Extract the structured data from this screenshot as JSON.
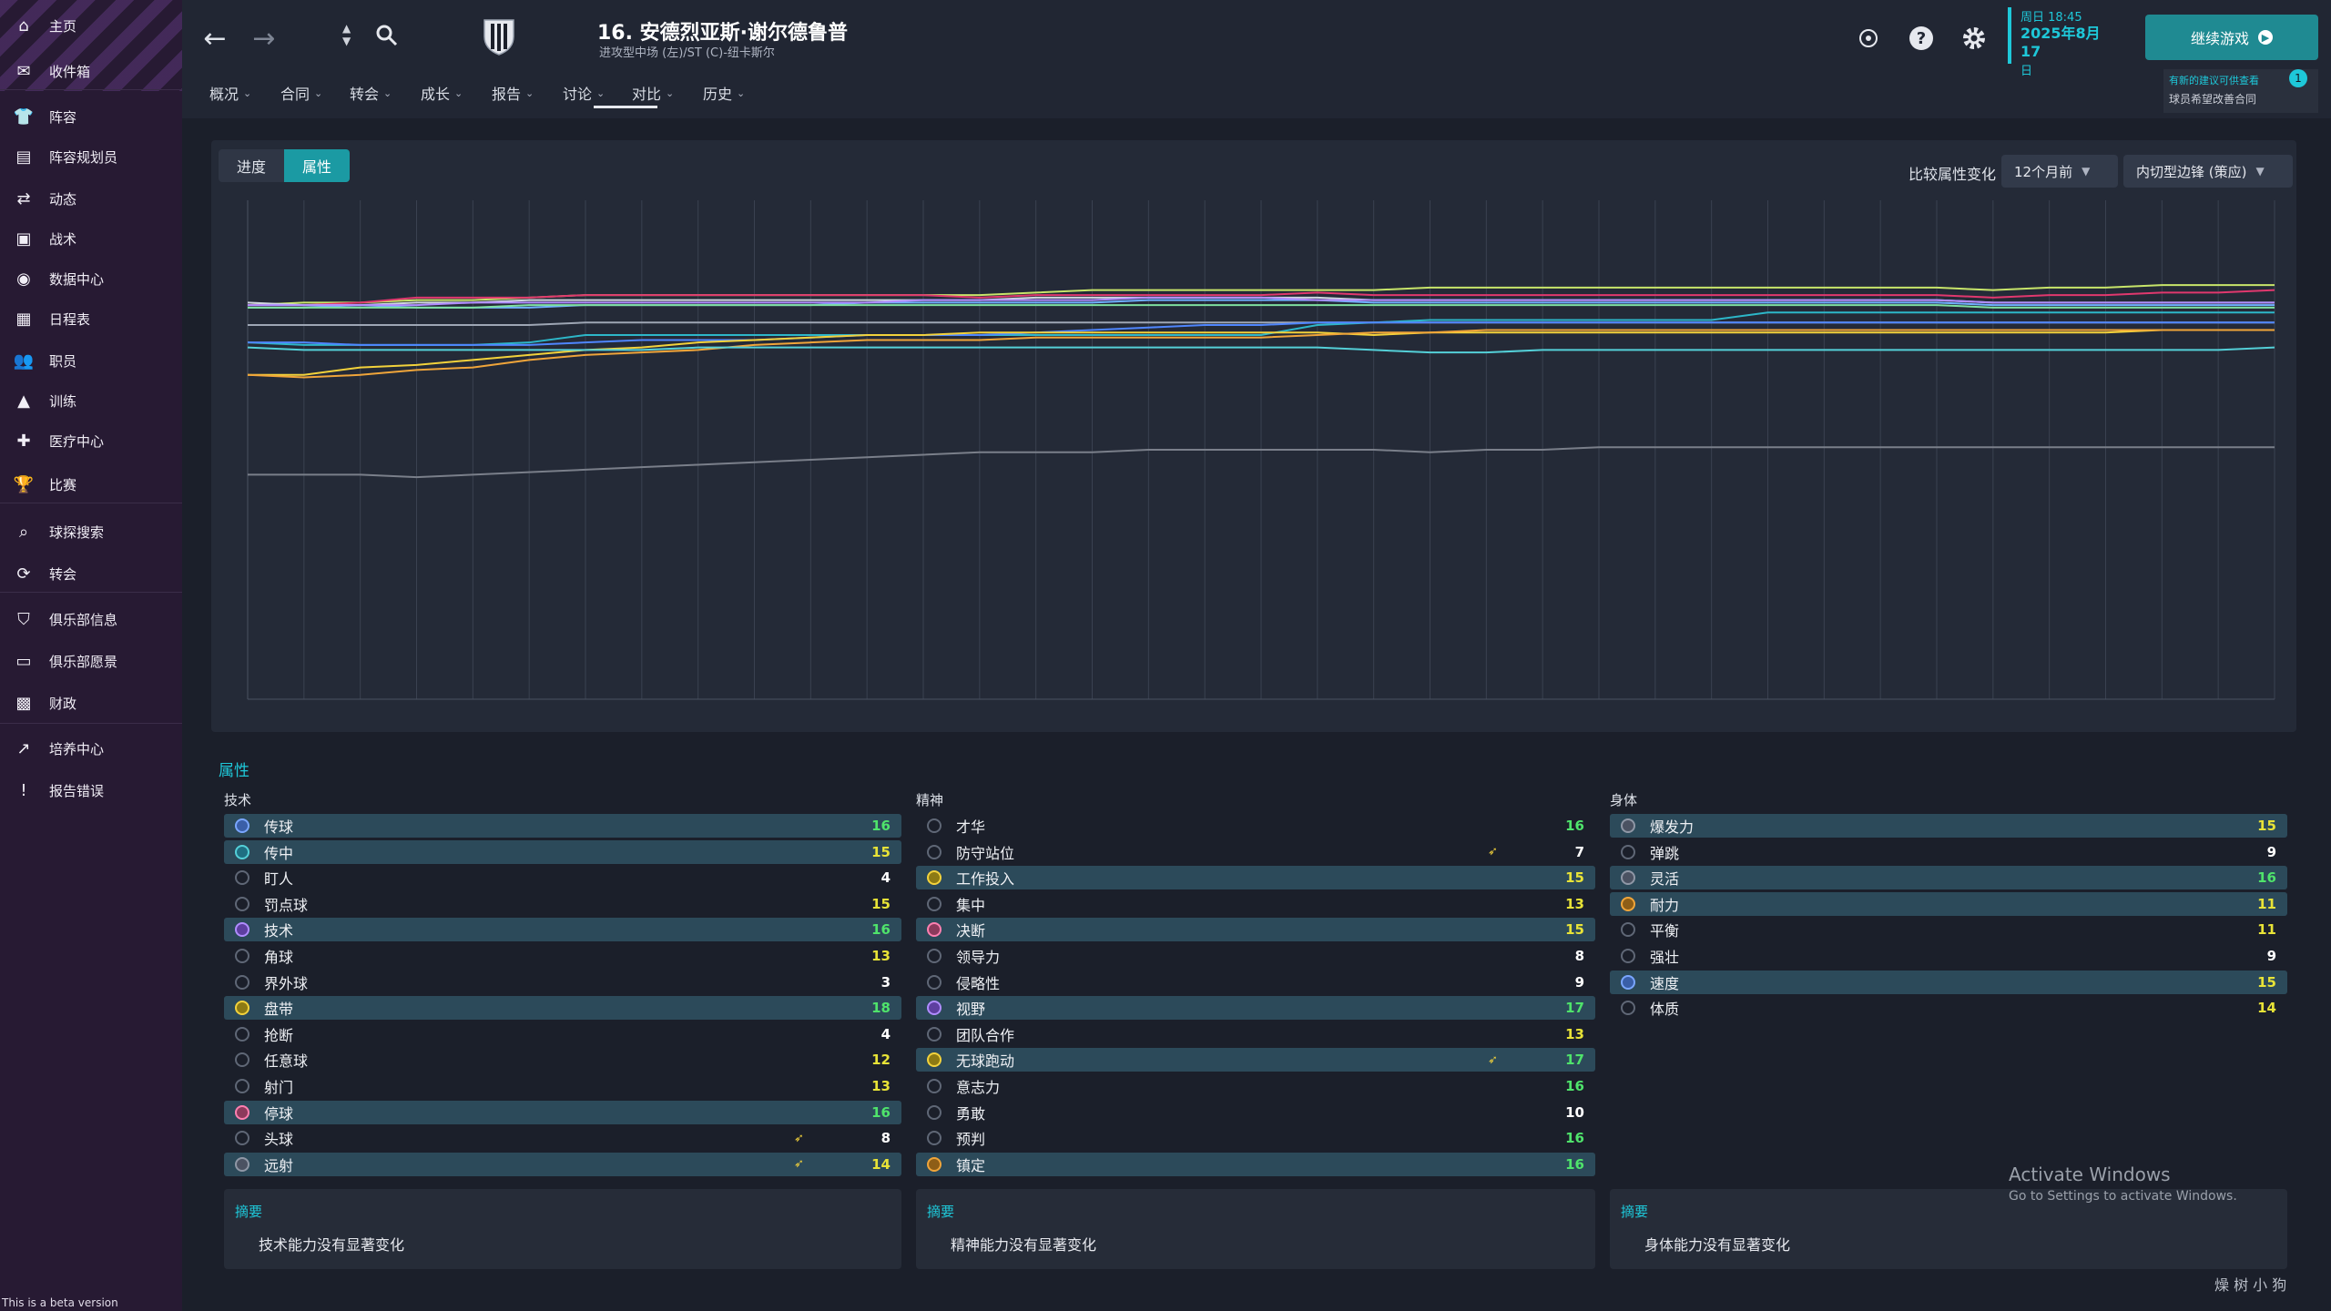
{
  "sidebar": {
    "items": [
      {
        "label": "主页",
        "icon": "home-icon"
      },
      {
        "label": "收件箱",
        "icon": "inbox-icon"
      },
      {
        "label": "阵容",
        "icon": "shirt-icon"
      },
      {
        "label": "阵容规划员",
        "icon": "clipboard-icon"
      },
      {
        "label": "动态",
        "icon": "dynamics-icon"
      },
      {
        "label": "战术",
        "icon": "tactics-icon"
      },
      {
        "label": "数据中心",
        "icon": "data-icon"
      },
      {
        "label": "日程表",
        "icon": "calendar-icon"
      },
      {
        "label": "职员",
        "icon": "staff-icon"
      },
      {
        "label": "训练",
        "icon": "training-icon"
      },
      {
        "label": "医疗中心",
        "icon": "medical-icon"
      },
      {
        "label": "比赛",
        "icon": "trophy-icon"
      },
      {
        "label": "球探搜索",
        "icon": "search-icon"
      },
      {
        "label": "转会",
        "icon": "transfer-icon"
      },
      {
        "label": "俱乐部信息",
        "icon": "club-icon"
      },
      {
        "label": "俱乐部愿景",
        "icon": "vision-icon"
      },
      {
        "label": "财政",
        "icon": "finance-icon"
      },
      {
        "label": "培养中心",
        "icon": "development-icon"
      },
      {
        "label": "报告错误",
        "icon": "alert-icon"
      }
    ],
    "beta_text": "This is a beta version"
  },
  "header": {
    "player_title": "16. 安德烈亚斯·谢尔德鲁普",
    "player_subtitle": "进攻型中场 (左)/ST (C)-纽卡斯尔",
    "tabs": [
      "概况",
      "合同",
      "转会",
      "成长",
      "报告",
      "讨论",
      "对比",
      "历史"
    ],
    "active_tab": "成长",
    "date_line1": "周日 18:45",
    "date_line2": "2025年8月17",
    "date_line3": "日",
    "continue_label": "继续游戏",
    "notif_line1": "有新的建议可供查看",
    "notif_line2": "球员希望改善合同",
    "notif_count": "1"
  },
  "chart_panel": {
    "toggle_progress": "进度",
    "toggle_attributes": "属性",
    "compare_label": "比较属性变化",
    "period_value": "12个月前",
    "role_value": "内切型边锋 (策应)"
  },
  "chart_data": {
    "type": "line",
    "x_points": 37,
    "ylim": [
      0,
      20
    ],
    "grid": "vertical",
    "legend": "none",
    "series": [
      {
        "color": "#c8e56a",
        "values": [
          15.8,
          15.9,
          15.9,
          16.0,
          16.0,
          16.1,
          16.2,
          16.2,
          16.2,
          16.2,
          16.2,
          16.2,
          16.2,
          16.2,
          16.3,
          16.4,
          16.4,
          16.4,
          16.4,
          16.4,
          16.4,
          16.5,
          16.5,
          16.5,
          16.5,
          16.5,
          16.5,
          16.5,
          16.5,
          16.5,
          16.5,
          16.4,
          16.5,
          16.5,
          16.6,
          16.6,
          16.6
        ]
      },
      {
        "color": "#e0386e",
        "values": [
          15.8,
          15.8,
          15.9,
          16.1,
          16.1,
          16.1,
          16.2,
          16.2,
          16.2,
          16.2,
          16.2,
          16.2,
          16.2,
          16.1,
          16.2,
          16.2,
          16.2,
          16.2,
          16.2,
          16.3,
          16.2,
          16.2,
          16.2,
          16.2,
          16.2,
          16.2,
          16.2,
          16.2,
          16.2,
          16.2,
          16.2,
          16.1,
          16.2,
          16.2,
          16.3,
          16.3,
          16.4
        ]
      },
      {
        "color": "#d0d6e0",
        "values": [
          15.9,
          15.8,
          15.8,
          15.9,
          15.9,
          16.0,
          16.0,
          16.0,
          16.0,
          16.0,
          16.0,
          16.0,
          16.0,
          16.0,
          16.1,
          16.1,
          16.1,
          16.1,
          16.1,
          16.1,
          16.0,
          16.0,
          16.0,
          16.0,
          16.0,
          16.0,
          16.0,
          16.0,
          16.0,
          16.0,
          16.0,
          15.9,
          15.9,
          15.9,
          15.9,
          15.9,
          15.9
        ]
      },
      {
        "color": "#6fb0ff",
        "values": [
          15.7,
          15.7,
          15.8,
          15.7,
          15.7,
          15.7,
          15.8,
          15.8,
          15.8,
          15.8,
          15.8,
          15.9,
          15.9,
          15.9,
          15.9,
          15.9,
          16.0,
          16.0,
          16.0,
          16.0,
          15.9,
          15.9,
          15.9,
          15.9,
          15.9,
          15.9,
          15.9,
          15.9,
          15.9,
          15.9,
          15.9,
          15.8,
          15.8,
          15.8,
          15.8,
          15.8,
          15.8
        ]
      },
      {
        "color": "#b08cff",
        "values": [
          15.8,
          15.8,
          15.8,
          15.8,
          15.9,
          15.9,
          15.9,
          15.9,
          15.9,
          15.9,
          15.9,
          15.9,
          16.0,
          16.0,
          16.0,
          16.0,
          16.1,
          16.1,
          16.1,
          16.0,
          16.0,
          16.0,
          16.0,
          16.0,
          16.0,
          16.0,
          16.0,
          16.0,
          16.0,
          16.0,
          16.0,
          15.9,
          15.9,
          15.9,
          15.9,
          15.9,
          15.9
        ]
      },
      {
        "color": "#7ee0a0",
        "values": [
          15.7,
          15.7,
          15.7,
          15.7,
          15.7,
          15.8,
          15.8,
          15.8,
          15.8,
          15.8,
          15.8,
          15.8,
          15.8,
          15.8,
          15.8,
          15.8,
          15.8,
          15.8,
          15.8,
          15.8,
          15.8,
          15.8,
          15.8,
          15.8,
          15.8,
          15.8,
          15.8,
          15.8,
          15.8,
          15.8,
          15.8,
          15.7,
          15.7,
          15.7,
          15.7,
          15.7,
          15.7
        ]
      },
      {
        "color": "#9ea6b4",
        "values": [
          15.0,
          15.0,
          15.0,
          15.0,
          15.0,
          15.0,
          15.1,
          15.1,
          15.1,
          15.1,
          15.1,
          15.1,
          15.1,
          15.1,
          15.1,
          15.1,
          15.1,
          15.1,
          15.1,
          15.1,
          15.1,
          15.1,
          15.1,
          15.1,
          15.1,
          15.1,
          15.1,
          15.1,
          15.1,
          15.1,
          15.1,
          15.1,
          15.1,
          15.1,
          15.1,
          15.1,
          15.1
        ]
      },
      {
        "color": "#2db7c9",
        "values": [
          14.3,
          14.2,
          14.2,
          14.2,
          14.2,
          14.3,
          14.6,
          14.6,
          14.6,
          14.6,
          14.6,
          14.6,
          14.6,
          14.6,
          14.6,
          14.6,
          14.6,
          14.6,
          14.6,
          15.0,
          15.1,
          15.2,
          15.2,
          15.2,
          15.2,
          15.2,
          15.2,
          15.5,
          15.5,
          15.5,
          15.5,
          15.5,
          15.5,
          15.5,
          15.5,
          15.5,
          15.5
        ]
      },
      {
        "color": "#4f86ff",
        "values": [
          14.3,
          14.3,
          14.2,
          14.2,
          14.2,
          14.2,
          14.3,
          14.4,
          14.4,
          14.4,
          14.5,
          14.6,
          14.6,
          14.6,
          14.7,
          14.8,
          14.9,
          15.0,
          15.0,
          15.1,
          15.1,
          15.1,
          15.1,
          15.1,
          15.1,
          15.1,
          15.1,
          15.1,
          15.1,
          15.1,
          15.1,
          15.1,
          15.1,
          15.1,
          15.1,
          15.1,
          15.1
        ]
      },
      {
        "color": "#f3d23b",
        "values": [
          13.0,
          13.0,
          13.3,
          13.4,
          13.6,
          13.8,
          14.0,
          14.1,
          14.3,
          14.4,
          14.5,
          14.6,
          14.6,
          14.7,
          14.7,
          14.7,
          14.7,
          14.7,
          14.7,
          14.7,
          14.6,
          14.7,
          14.7,
          14.7,
          14.7,
          14.7,
          14.7,
          14.7,
          14.7,
          14.7,
          14.7,
          14.7,
          14.7,
          14.7,
          14.8,
          14.8,
          14.8
        ]
      },
      {
        "color": "#f0a53a",
        "values": [
          13.0,
          12.9,
          13.0,
          13.2,
          13.3,
          13.6,
          13.8,
          13.9,
          14.0,
          14.2,
          14.3,
          14.4,
          14.4,
          14.4,
          14.5,
          14.5,
          14.5,
          14.5,
          14.5,
          14.6,
          14.7,
          14.7,
          14.8,
          14.8,
          14.8,
          14.8,
          14.8,
          14.8,
          14.8,
          14.8,
          14.8,
          14.8,
          14.8,
          14.8,
          14.8,
          14.8,
          14.8
        ]
      },
      {
        "color": "#54d0d8",
        "values": [
          14.1,
          14.0,
          14.0,
          14.0,
          14.0,
          14.0,
          14.0,
          14.0,
          14.1,
          14.1,
          14.1,
          14.1,
          14.1,
          14.1,
          14.1,
          14.1,
          14.1,
          14.1,
          14.1,
          14.1,
          14.0,
          13.9,
          13.9,
          14.0,
          14.0,
          14.0,
          14.0,
          14.0,
          14.0,
          14.0,
          14.0,
          14.0,
          14.0,
          14.0,
          14.0,
          14.0,
          14.1
        ]
      },
      {
        "color": "#7a7f8a",
        "values": [
          9.0,
          9.0,
          9.0,
          8.9,
          9.0,
          9.1,
          9.2,
          9.3,
          9.4,
          9.5,
          9.6,
          9.7,
          9.8,
          9.9,
          9.9,
          9.9,
          10.0,
          10.0,
          10.0,
          10.0,
          10.0,
          9.9,
          10.0,
          10.0,
          10.1,
          10.1,
          10.1,
          10.1,
          10.1,
          10.1,
          10.1,
          10.1,
          10.1,
          10.1,
          10.1,
          10.1,
          10.1
        ]
      }
    ]
  },
  "attributes": {
    "title": "属性",
    "technical": {
      "title": "技术",
      "rows": [
        {
          "name": "传球",
          "value": "16",
          "hl": true,
          "dot": "c-blue",
          "vc": "v-green",
          "arrow": ""
        },
        {
          "name": "传中",
          "value": "15",
          "hl": true,
          "dot": "c-teal",
          "vc": "v-yellow",
          "arrow": ""
        },
        {
          "name": "盯人",
          "value": "4",
          "hl": false,
          "dot": "c-plain",
          "vc": "v-white",
          "arrow": ""
        },
        {
          "name": "罚点球",
          "value": "15",
          "hl": false,
          "dot": "c-plain",
          "vc": "v-yellow",
          "arrow": ""
        },
        {
          "name": "技术",
          "value": "16",
          "hl": true,
          "dot": "c-purple",
          "vc": "v-green",
          "arrow": ""
        },
        {
          "name": "角球",
          "value": "13",
          "hl": false,
          "dot": "c-plain",
          "vc": "v-yellow",
          "arrow": ""
        },
        {
          "name": "界外球",
          "value": "3",
          "hl": false,
          "dot": "c-plain",
          "vc": "v-white",
          "arrow": ""
        },
        {
          "name": "盘带",
          "value": "18",
          "hl": true,
          "dot": "c-yellow",
          "vc": "v-green",
          "arrow": ""
        },
        {
          "name": "抢断",
          "value": "4",
          "hl": false,
          "dot": "c-plain",
          "vc": "v-white",
          "arrow": ""
        },
        {
          "name": "任意球",
          "value": "12",
          "hl": false,
          "dot": "c-plain",
          "vc": "v-yellow",
          "arrow": ""
        },
        {
          "name": "射门",
          "value": "13",
          "hl": false,
          "dot": "c-plain",
          "vc": "v-yellow",
          "arrow": ""
        },
        {
          "name": "停球",
          "value": "16",
          "hl": true,
          "dot": "c-pink",
          "vc": "v-green",
          "arrow": ""
        },
        {
          "name": "头球",
          "value": "8",
          "hl": false,
          "dot": "c-plain",
          "vc": "v-white",
          "arrow": "➶"
        },
        {
          "name": "远射",
          "value": "14",
          "hl": true,
          "dot": "c-gray",
          "vc": "v-yellow",
          "arrow": "➶"
        }
      ]
    },
    "mental": {
      "title": "精神",
      "rows": [
        {
          "name": "才华",
          "value": "16",
          "hl": false,
          "dot": "c-plain",
          "vc": "v-green",
          "arrow": ""
        },
        {
          "name": "防守站位",
          "value": "7",
          "hl": false,
          "dot": "c-plain",
          "vc": "v-white",
          "arrow": "➶"
        },
        {
          "name": "工作投入",
          "value": "15",
          "hl": true,
          "dot": "c-yellow",
          "vc": "v-yellow",
          "arrow": ""
        },
        {
          "name": "集中",
          "value": "13",
          "hl": false,
          "dot": "c-plain",
          "vc": "v-yellow",
          "arrow": ""
        },
        {
          "name": "决断",
          "value": "15",
          "hl": true,
          "dot": "c-pink",
          "vc": "v-yellow",
          "arrow": ""
        },
        {
          "name": "领导力",
          "value": "8",
          "hl": false,
          "dot": "c-plain",
          "vc": "v-white",
          "arrow": ""
        },
        {
          "name": "侵略性",
          "value": "9",
          "hl": false,
          "dot": "c-plain",
          "vc": "v-white",
          "arrow": ""
        },
        {
          "name": "视野",
          "value": "17",
          "hl": true,
          "dot": "c-purple",
          "vc": "v-green",
          "arrow": ""
        },
        {
          "name": "团队合作",
          "value": "13",
          "hl": false,
          "dot": "c-plain",
          "vc": "v-yellow",
          "arrow": ""
        },
        {
          "name": "无球跑动",
          "value": "17",
          "hl": true,
          "dot": "c-yellow",
          "vc": "v-green",
          "arrow": "➶"
        },
        {
          "name": "意志力",
          "value": "16",
          "hl": false,
          "dot": "c-plain",
          "vc": "v-green",
          "arrow": ""
        },
        {
          "name": "勇敢",
          "value": "10",
          "hl": false,
          "dot": "c-plain",
          "vc": "v-white",
          "arrow": ""
        },
        {
          "name": "预判",
          "value": "16",
          "hl": false,
          "dot": "c-plain",
          "vc": "v-green",
          "arrow": ""
        },
        {
          "name": "镇定",
          "value": "16",
          "hl": true,
          "dot": "c-orange",
          "vc": "v-green",
          "arrow": ""
        }
      ]
    },
    "physical": {
      "title": "身体",
      "rows": [
        {
          "name": "爆发力",
          "value": "15",
          "hl": true,
          "dot": "c-gray",
          "vc": "v-yellow",
          "arrow": ""
        },
        {
          "name": "弹跳",
          "value": "9",
          "hl": false,
          "dot": "c-plain",
          "vc": "v-white",
          "arrow": ""
        },
        {
          "name": "灵活",
          "value": "16",
          "hl": true,
          "dot": "c-gray",
          "vc": "v-green",
          "arrow": ""
        },
        {
          "name": "耐力",
          "value": "11",
          "hl": true,
          "dot": "c-orange",
          "vc": "v-yellow",
          "arrow": ""
        },
        {
          "name": "平衡",
          "value": "11",
          "hl": false,
          "dot": "c-plain",
          "vc": "v-yellow",
          "arrow": ""
        },
        {
          "name": "强壮",
          "value": "9",
          "hl": false,
          "dot": "c-plain",
          "vc": "v-white",
          "arrow": ""
        },
        {
          "name": "速度",
          "value": "15",
          "hl": true,
          "dot": "c-blue",
          "vc": "v-yellow",
          "arrow": ""
        },
        {
          "name": "体质",
          "value": "14",
          "hl": false,
          "dot": "c-plain",
          "vc": "v-yellow",
          "arrow": ""
        }
      ]
    }
  },
  "summaries": [
    {
      "title": "摘要",
      "text": "技术能力没有显著变化"
    },
    {
      "title": "摘要",
      "text": "精神能力没有显著变化"
    },
    {
      "title": "摘要",
      "text": "身体能力没有显著变化"
    }
  ],
  "overlay": {
    "activate_line1": "Activate Windows",
    "activate_line2": "Go to Settings to activate Windows.",
    "watermark": "燥 树 小 狗"
  }
}
